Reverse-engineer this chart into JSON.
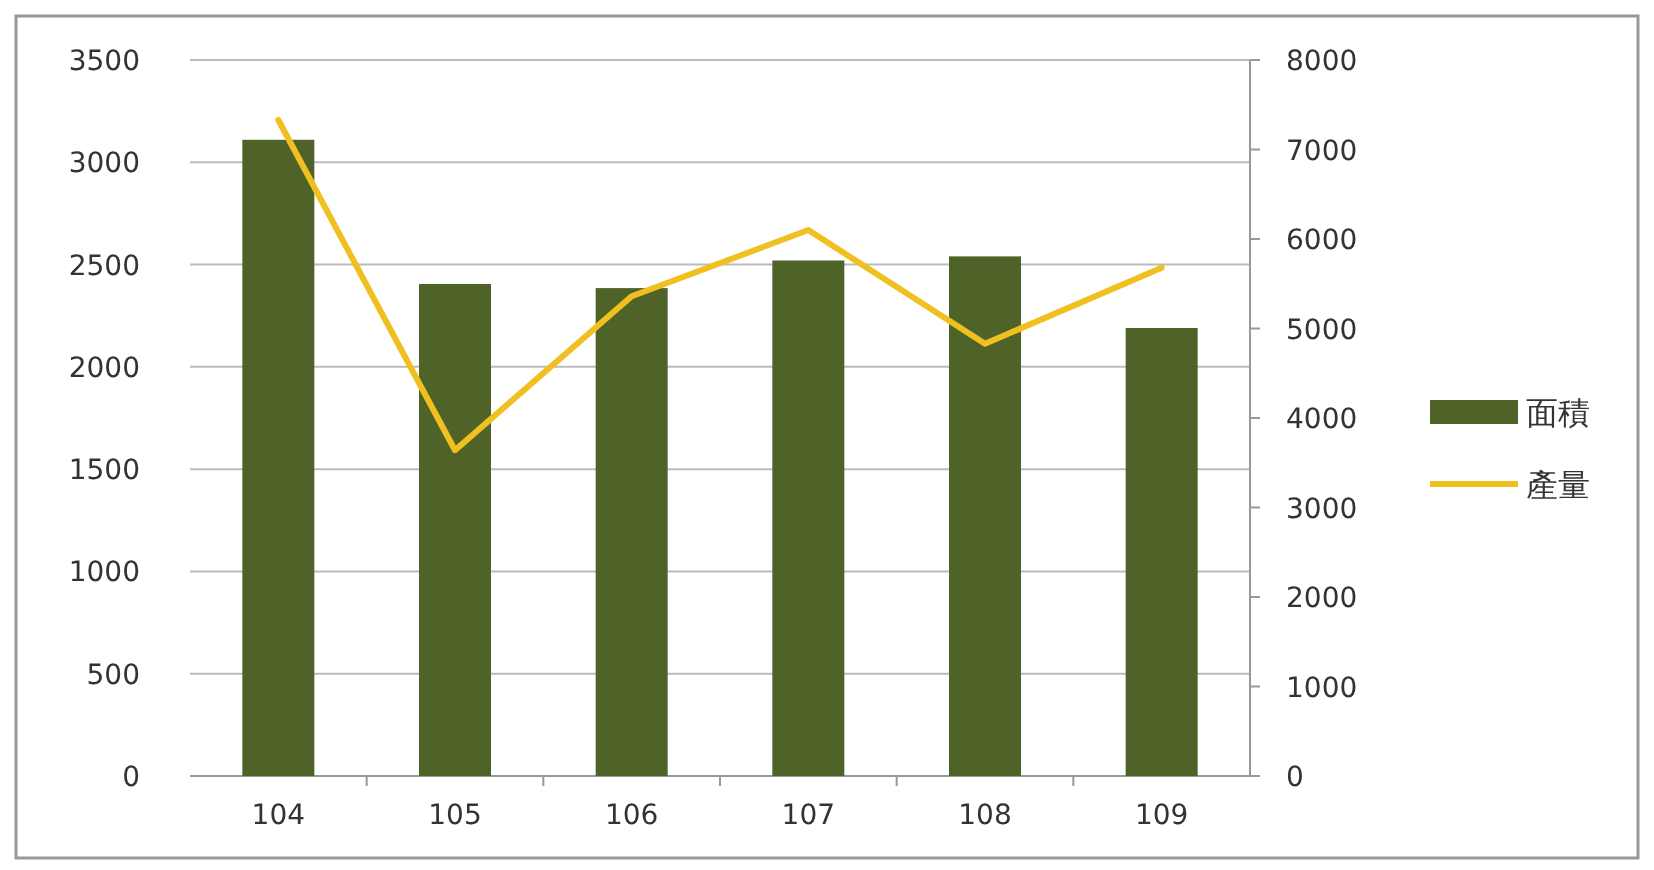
{
  "chart_data": {
    "type": "bar",
    "categories": [
      "104",
      "105",
      "106",
      "107",
      "108",
      "109"
    ],
    "series": [
      {
        "name": "面積",
        "color": "#4f6228",
        "values": [
          3110,
          2405,
          2385,
          2520,
          2540,
          2190
        ]
      },
      {
        "name": "產量",
        "type": "line",
        "axis": "y2",
        "color": "#f0c020",
        "values": [
          7330,
          3640,
          5360,
          6100,
          4830,
          5680
        ]
      }
    ],
    "ylim": [
      0,
      3500
    ],
    "yticks": [
      0,
      500,
      1000,
      1500,
      2000,
      2500,
      3000,
      3500
    ],
    "y2lim": [
      0,
      8000
    ],
    "y2ticks": [
      0,
      1000,
      2000,
      3000,
      4000,
      5000,
      6000,
      7000,
      8000
    ],
    "grid": "y",
    "legend": "right",
    "marker": "none",
    "line_style": "solid"
  }
}
